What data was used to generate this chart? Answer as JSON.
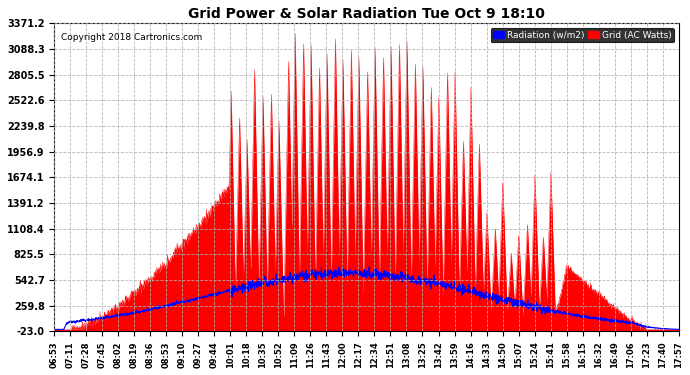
{
  "title": "Grid Power & Solar Radiation Tue Oct 9 18:10",
  "copyright": "Copyright 2018 Cartronics.com",
  "background_color": "#ffffff",
  "plot_bg_color": "#ffffff",
  "grid_color": "#b0b0b0",
  "yticks": [
    -23.0,
    259.8,
    542.7,
    825.5,
    1108.4,
    1391.2,
    1674.1,
    1956.9,
    2239.8,
    2522.6,
    2805.5,
    3088.3,
    3371.2
  ],
  "ymin": -23.0,
  "ymax": 3371.2,
  "legend_radiation_label": "Radiation (w/m2)",
  "legend_grid_label": "Grid (AC Watts)",
  "radiation_color": "#0000ff",
  "grid_color_fill": "#ff0000",
  "xtick_labels": [
    "06:53",
    "07:11",
    "07:28",
    "07:45",
    "08:02",
    "08:19",
    "08:36",
    "08:53",
    "09:10",
    "09:27",
    "09:44",
    "10:01",
    "10:18",
    "10:35",
    "10:52",
    "11:09",
    "11:26",
    "11:43",
    "12:00",
    "12:17",
    "12:34",
    "12:51",
    "13:08",
    "13:25",
    "13:42",
    "13:59",
    "14:16",
    "14:33",
    "14:50",
    "15:07",
    "15:24",
    "15:41",
    "15:58",
    "16:15",
    "16:32",
    "16:49",
    "17:06",
    "17:23",
    "17:40",
    "17:57"
  ]
}
